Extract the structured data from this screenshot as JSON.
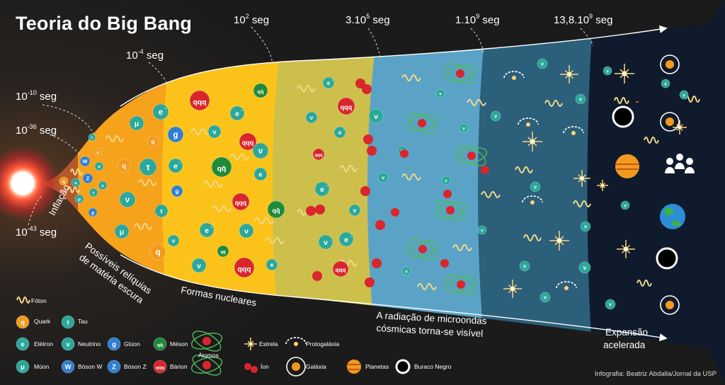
{
  "title": "Teoria do Big Bang",
  "times": {
    "t1": {
      "base": "10",
      "exp": "-43",
      "unit": "seg"
    },
    "t2": {
      "base": "10",
      "exp": "-36",
      "unit": "seg"
    },
    "t3": {
      "base": "10",
      "exp": "-10",
      "unit": "seg"
    },
    "t4": {
      "base": "10",
      "exp": "-4",
      "unit": "seg"
    },
    "t5": {
      "base": "10",
      "exp": "2",
      "unit": "seg"
    },
    "t6": {
      "base": "3.10",
      "exp": "5",
      "unit": "seg"
    },
    "t7": {
      "base": "1.10",
      "exp": "9",
      "unit": "seg"
    },
    "t8": {
      "base": "13,8.10",
      "exp": "9",
      "unit": "seg"
    }
  },
  "labels": {
    "inflation": "Inflação",
    "dark_matter_1": "Possíveis relíquias",
    "dark_matter_2": "de matéria escura",
    "nuclear": "Formas nucleares",
    "microwave_1": "A radiação de microondas",
    "microwave_2": "cósmicas torna-se visível",
    "expansion_1": "Expansão",
    "expansion_2": "acelerada"
  },
  "particles": {
    "quark": "q",
    "tau": "τ",
    "electron": "e",
    "electron_sup": "−",
    "neutrino": "ν",
    "gluon": "g",
    "meson": "qq̄",
    "muon": "μ",
    "boson_w": "W",
    "boson_z": "Z",
    "baryon": "qqq"
  },
  "legend": {
    "photon": "Fóton",
    "quark": "Quark",
    "tau": "Tau",
    "electron": "Elétron",
    "neutrino": "Neutrino",
    "gluon": "Glúon",
    "meson": "Méson",
    "atoms": "Átomos",
    "star": "Estrela",
    "protogalaxy": "Protogaláxia",
    "muon": "Múon",
    "boson_w": "Bóson W",
    "boson_z": "Bóson Z",
    "baryon": "Bárion",
    "ion": "Íon",
    "galaxy": "Galáxia",
    "planets": "Planetas",
    "black_hole": "Buraco Negro"
  },
  "credit": "Infografia: Beatriz Abdalla/Jornal da USP",
  "colors": {
    "quark": "#f39a1e",
    "teal": "#2aa89a",
    "blue": "#2f7fd0",
    "meson": "#1f8a3a",
    "baryon": "#d9262c",
    "photon": "#f3d98a",
    "band1": "#f6a21b",
    "band2": "#fbc31a",
    "band3": "#cdbf4c",
    "band4": "#5aa3c6",
    "band5": "#2c5f7a",
    "band6": "#0f1b2c"
  }
}
